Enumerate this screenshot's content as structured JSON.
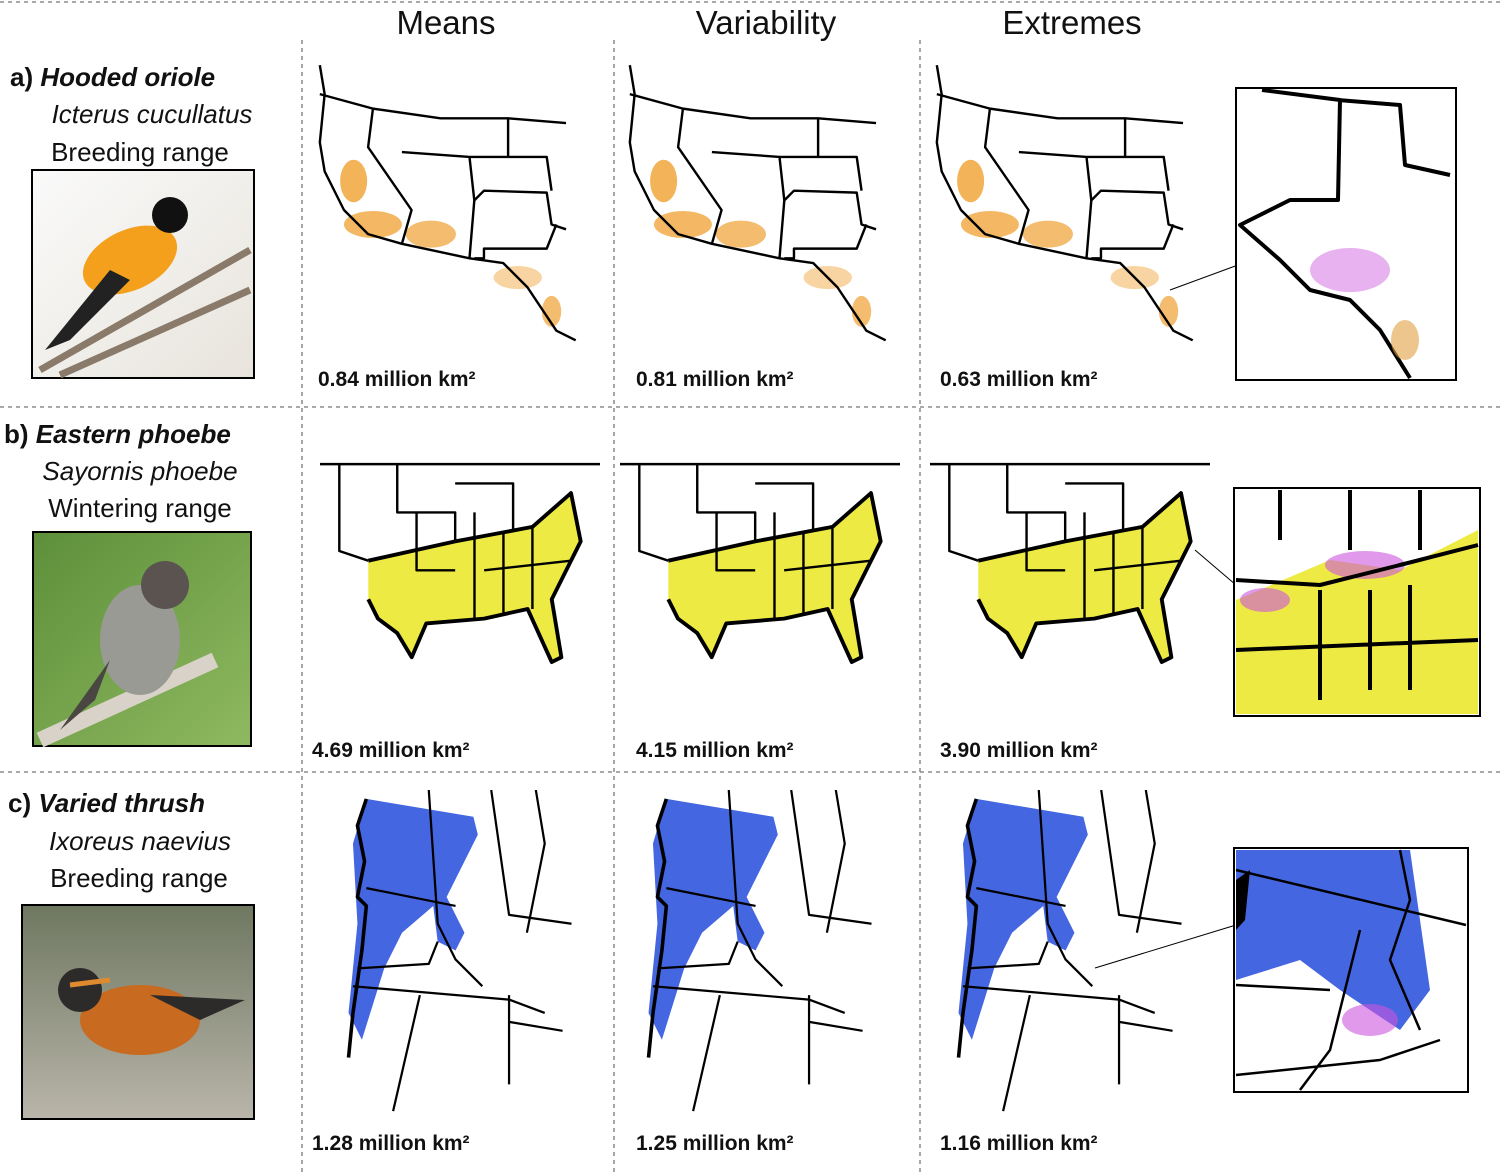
{
  "columns": [
    "Means",
    "Variability",
    "Extremes"
  ],
  "rows": [
    {
      "letter": "a)",
      "common_name": "Hooded oriole",
      "scientific_name": "Icterus cucullatus",
      "range": "Breeding range",
      "areas": [
        "0.84 million km²",
        "0.81 million km²",
        "0.63 million km²"
      ]
    },
    {
      "letter": "b)",
      "common_name": "Eastern phoebe",
      "scientific_name": "Sayornis phoebe",
      "range": "Wintering range",
      "areas": [
        "4.69 million km²",
        "4.15 million km²",
        "3.90 million km²"
      ]
    },
    {
      "letter": "c)",
      "common_name": "Varied thrush",
      "scientific_name": "Ixoreus naevius",
      "range": "Breeding range",
      "areas": [
        "1.28 million km²",
        "1.25 million km²",
        "1.16 million km²"
      ]
    }
  ]
}
